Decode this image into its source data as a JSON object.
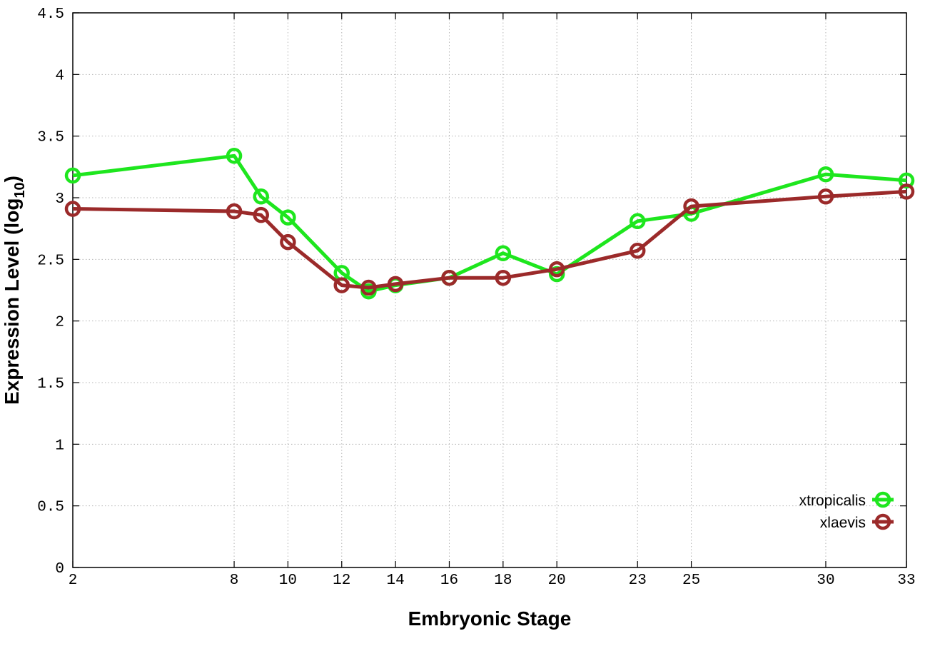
{
  "chart_data": {
    "type": "line",
    "xlabel": "Embryonic Stage",
    "ylabel": {
      "main": "Expression Level (log",
      "subscript": "10",
      "suffix": ")"
    },
    "x_ticks": [
      2,
      8,
      10,
      12,
      14,
      16,
      18,
      20,
      23,
      25,
      30,
      33
    ],
    "y_ticks": [
      "0",
      "0.5",
      "1",
      "1.5",
      "2",
      "2.5",
      "3",
      "3.5",
      "4",
      "4.5"
    ],
    "xlim": [
      2,
      33
    ],
    "ylim": [
      0,
      4.5
    ],
    "grid": true,
    "legend_position": "bottom-right",
    "series": [
      {
        "name": "xtropicalis",
        "color": "#1ee61e",
        "x": [
          2,
          8,
          9,
          10,
          12,
          13,
          14,
          16,
          18,
          20,
          23,
          25,
          30,
          33
        ],
        "y": [
          3.18,
          3.34,
          3.01,
          2.84,
          2.39,
          2.24,
          2.29,
          2.35,
          2.55,
          2.38,
          2.81,
          2.87,
          3.19,
          3.14
        ]
      },
      {
        "name": "xlaevis",
        "color": "#9b2a2a",
        "x": [
          2,
          8,
          9,
          10,
          12,
          13,
          14,
          16,
          18,
          20,
          23,
          25,
          30,
          33
        ],
        "y": [
          2.91,
          2.89,
          2.86,
          2.64,
          2.29,
          2.27,
          2.3,
          2.35,
          2.35,
          2.42,
          2.57,
          2.93,
          3.01,
          3.05
        ]
      }
    ]
  }
}
